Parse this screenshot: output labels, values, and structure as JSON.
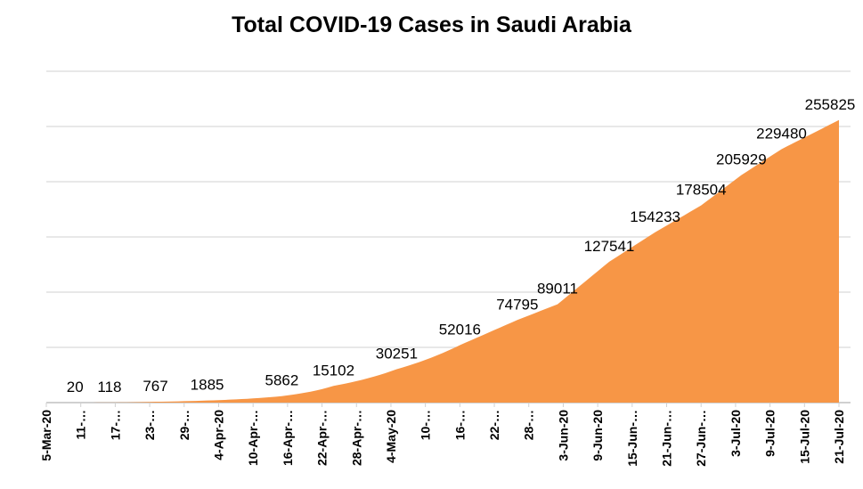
{
  "chart_data": {
    "type": "area",
    "title": "Total COVID-19 Cases in Saudi Arabia",
    "xlabel": "",
    "ylabel": "",
    "x_range": [
      "5-Mar-20",
      "21-Jul-20"
    ],
    "ylim": [
      0,
      300000
    ],
    "y_gridlines": [
      0,
      50000,
      100000,
      150000,
      200000,
      250000,
      300000
    ],
    "y_tick_labels_shown": false,
    "grid": true,
    "legend": "none",
    "color": "#F79646",
    "x_tick_labels": [
      "5-Mar-20",
      "11-…",
      "17-…",
      "23-…",
      "29-…",
      "4-Apr-20",
      "10-Apr-…",
      "16-Apr-…",
      "22-Apr-…",
      "28-Apr-…",
      "4-May-20",
      "10-…",
      "16-…",
      "22-…",
      "28-…",
      "3-Jun-20",
      "9-Jun-20",
      "15-Jun-…",
      "21-Jun-…",
      "27-Jun-…",
      "3-Jul-20",
      "9-Jul-20",
      "15-Jul-20",
      "21-Jul-20"
    ],
    "points": [
      {
        "date": "2020-03-05",
        "value": 5
      },
      {
        "date": "2020-03-10",
        "value": 20
      },
      {
        "date": "2020-03-16",
        "value": 118
      },
      {
        "date": "2020-03-24",
        "value": 767
      },
      {
        "date": "2020-04-02",
        "value": 1885
      },
      {
        "date": "2020-04-15",
        "value": 5862
      },
      {
        "date": "2020-04-24",
        "value": 15102
      },
      {
        "date": "2020-05-05",
        "value": 30251
      },
      {
        "date": "2020-05-16",
        "value": 52016
      },
      {
        "date": "2020-05-26",
        "value": 74795
      },
      {
        "date": "2020-06-02",
        "value": 89011
      },
      {
        "date": "2020-06-11",
        "value": 127541
      },
      {
        "date": "2020-06-19",
        "value": 154233
      },
      {
        "date": "2020-06-27",
        "value": 178504
      },
      {
        "date": "2020-07-04",
        "value": 205929
      },
      {
        "date": "2020-07-11",
        "value": 229480
      },
      {
        "date": "2020-07-21",
        "value": 255825
      }
    ],
    "data_labels": [
      "20",
      "118",
      "767",
      "1885",
      "5862",
      "15102",
      "30251",
      "52016",
      "74795",
      "89011",
      "127541",
      "154233",
      "178504",
      "205929",
      "229480",
      "255825"
    ]
  }
}
